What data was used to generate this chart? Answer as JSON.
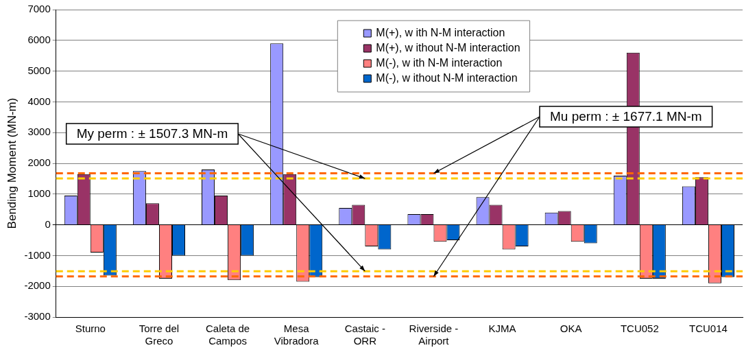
{
  "chart_data": {
    "type": "bar",
    "ylabel": "Bending Moment (MN-m)",
    "categories": [
      "Sturno",
      "Torre del Greco",
      "Caleta de Campos",
      "Mesa Vibradora",
      "Castaic - ORR",
      "Riverside - Airport",
      "KJMA",
      "OKA",
      "TCU052",
      "TCU014"
    ],
    "series": [
      {
        "name": "M(+), w ith N-M interaction",
        "color": "#9999ff",
        "values": [
          950,
          1750,
          1800,
          5900,
          550,
          350,
          900,
          400,
          1600,
          1250
        ]
      },
      {
        "name": "M(+), w ithout N-M interaction",
        "color": "#993366",
        "values": [
          1650,
          700,
          950,
          1650,
          650,
          350,
          650,
          450,
          5600,
          1550
        ]
      },
      {
        "name": "M(-), w ith N-M interaction",
        "color": "#ff8080",
        "values": [
          -900,
          -1750,
          -1800,
          -1850,
          -700,
          -550,
          -800,
          -550,
          -1750,
          -1900
        ]
      },
      {
        "name": "M(-), w ithout N-M interaction",
        "color": "#0066cc",
        "values": [
          -1650,
          -1000,
          -1000,
          -1700,
          -800,
          -500,
          -700,
          -600,
          -1750,
          -1700
        ]
      }
    ],
    "ylim": [
      -3000,
      7000
    ],
    "yticks": [
      -3000,
      -2000,
      -1000,
      0,
      1000,
      2000,
      3000,
      4000,
      5000,
      6000,
      7000
    ],
    "grid": "y",
    "legend": "top",
    "ref_lines": [
      {
        "axis": "y",
        "value": 1507.3,
        "color": "#ffcc00",
        "line_style": "dashed"
      },
      {
        "axis": "y",
        "value": -1507.3,
        "color": "#ffcc00",
        "line_style": "dashed"
      },
      {
        "axis": "y",
        "value": 1677.1,
        "color": "#ff6600",
        "line_style": "dashed"
      },
      {
        "axis": "y",
        "value": -1677.1,
        "color": "#ff6600",
        "line_style": "dashed"
      }
    ],
    "annotations": [
      {
        "text": "My perm : ± 1507.3 MN-m",
        "x": "Castaic - ORR",
        "y": 1507.3
      },
      {
        "text": "Mu perm : ± 1677.1 MN-m",
        "x": "Riverside - Airport",
        "y": 1677.1
      }
    ]
  }
}
